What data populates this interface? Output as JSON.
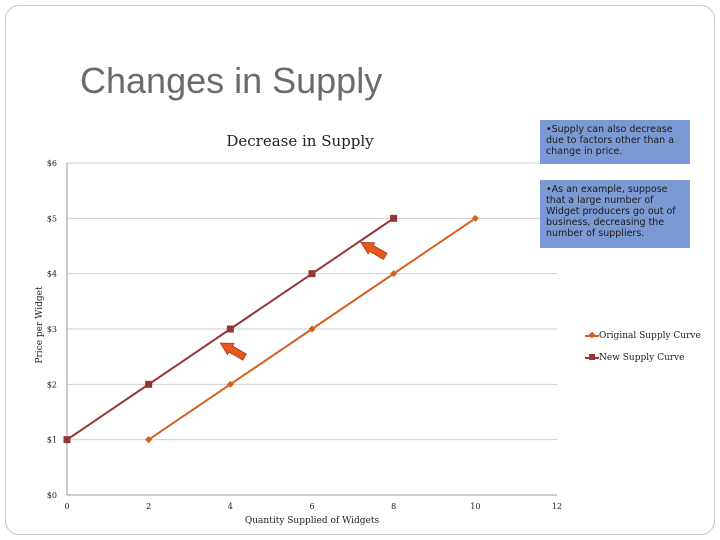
{
  "slide": {
    "title": "Changes in Supply",
    "note_1": "•Supply can also decrease due to factors other than a change in price.",
    "note_2": "•As an example, suppose that a large number of Widget producers go out of business, decreasing the number of suppliers."
  },
  "chart_data": {
    "type": "line",
    "title": "Decrease in Supply",
    "xlabel": "Quantity Supplied of Widgets",
    "ylabel": "Price per Widget",
    "xlim": [
      0,
      12
    ],
    "ylim": [
      0,
      6
    ],
    "x_ticks": [
      "0",
      "2",
      "4",
      "6",
      "8",
      "10",
      "12"
    ],
    "y_ticks": [
      "$0",
      "$1",
      "$2",
      "$3",
      "$4",
      "$5",
      "$6"
    ],
    "grid": "horizontal",
    "legend_position": "right",
    "series": [
      {
        "name": "Original Supply Curve",
        "color": "#d4601e",
        "marker": "diamond",
        "points": [
          [
            2,
            1
          ],
          [
            4,
            2
          ],
          [
            6,
            3
          ],
          [
            8,
            4
          ],
          [
            10,
            5
          ]
        ]
      },
      {
        "name": "New Supply Curve",
        "color": "#943634",
        "marker": "square",
        "points": [
          [
            0,
            1
          ],
          [
            2,
            2
          ],
          [
            4,
            3
          ],
          [
            6,
            4
          ],
          [
            8,
            5
          ]
        ]
      }
    ],
    "annotations": [
      "arrow-left-up",
      "arrow-left-up"
    ],
    "annotation_color": "#e8571c"
  }
}
